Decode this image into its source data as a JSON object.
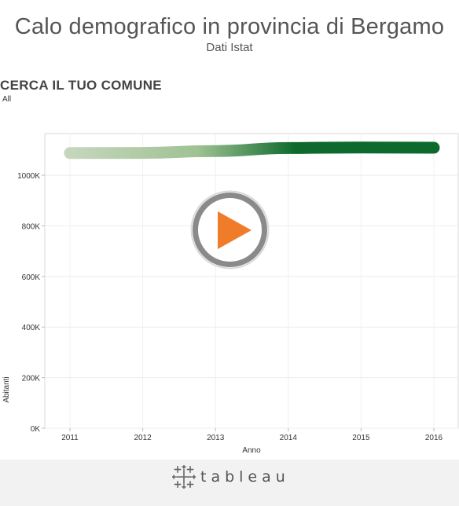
{
  "header": {
    "title": "Calo demografico in provincia di Bergamo",
    "subtitle": "Dati Istat"
  },
  "filter": {
    "label": "CERCA IL TUO COMUNE",
    "value": "All"
  },
  "chart_data": {
    "type": "line",
    "x": [
      2011,
      2012,
      2013,
      2014,
      2015,
      2016
    ],
    "series": [
      {
        "values": [
          1088000,
          1088500,
          1096000,
          1108000,
          1110000,
          1109000
        ]
      }
    ],
    "xlabel": "Anno",
    "ylabel": "Abitanti",
    "xticks": [
      "2011",
      "2012",
      "2013",
      "2014",
      "2015",
      "2016"
    ],
    "yticks": [
      "0K",
      "200K",
      "400K",
      "600K",
      "800K",
      "1000K"
    ],
    "ytick_values": [
      0,
      200000,
      400000,
      600000,
      800000,
      1000000
    ],
    "ylim": [
      0,
      1165000
    ],
    "grid": true,
    "line_colors": [
      "#c5d6bd",
      "#0d6a2c"
    ]
  },
  "footer": {
    "brand": "tableau"
  },
  "colors": {
    "play_ring": "#8a8a8a",
    "play_arrow": "#f07c2a",
    "footer_bg": "#f2f2f2"
  }
}
